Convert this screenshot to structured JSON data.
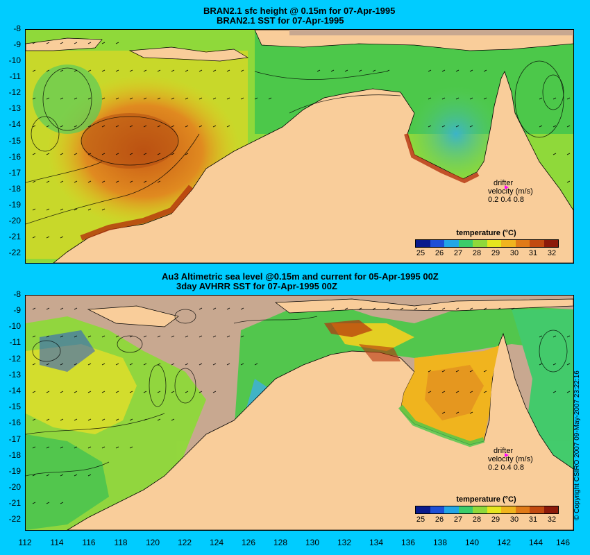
{
  "top_panel": {
    "title_line1": "BRAN2.1 sfc height @ 0.15m for 07-Apr-1995",
    "title_line2": "BRAN2.1 SST for 07-Apr-1995"
  },
  "bottom_panel": {
    "title_line1": "Au3 Altimetric sea level  @0.15m and current for 05-Apr-1995 00Z",
    "title_line2": "3day AVHRR SST for 07-Apr-1995 00Z"
  },
  "y_ticks": [
    "-8",
    "-9",
    "-10",
    "-11",
    "-12",
    "-13",
    "-14",
    "-15",
    "-16",
    "-17",
    "-18",
    "-19",
    "-20",
    "-21",
    "-22"
  ],
  "x_ticks": [
    "112",
    "114",
    "116",
    "118",
    "120",
    "122",
    "124",
    "126",
    "128",
    "130",
    "132",
    "134",
    "136",
    "138",
    "140",
    "142",
    "144",
    "146"
  ],
  "legend": {
    "title": "temperature (°C)",
    "labels": [
      "25",
      "26",
      "27",
      "28",
      "29",
      "30",
      "31",
      "32"
    ],
    "colors": [
      "#0a1a8c",
      "#1e4fd6",
      "#22a6e6",
      "#3ccc6a",
      "#8fd93a",
      "#e6e61e",
      "#f0b41e",
      "#e07a18",
      "#c24a10",
      "#8c1a0a"
    ]
  },
  "drifter": {
    "label": "drifter",
    "velocity_label": "velocity (m/s)",
    "scale": "0.2 0.4 0.8",
    "marker_color": "#ff00ff"
  },
  "copyright": "© Copyright CSIRO 2007   09-May-2007 23:22:16",
  "colors": {
    "background": "#00ccff",
    "land": "#f9cd9a",
    "no_data": "#c8a890"
  }
}
